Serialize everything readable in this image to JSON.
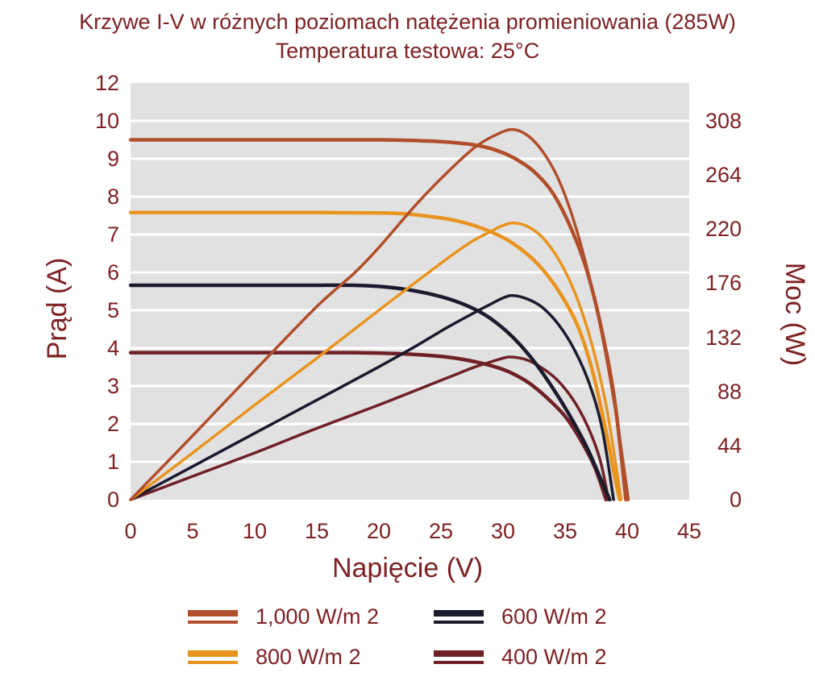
{
  "colors": {
    "text": "#7d2124",
    "plot_bg": "#e1e1e1",
    "grid": "#ffffff",
    "s1000": "#b14e2b",
    "s800": "#e8941f",
    "s600": "#1b1b2e",
    "s400": "#6f2127"
  },
  "chart_data": {
    "type": "line",
    "title": "Krzywe I-V w różnych poziomach natężenia promieniowania (285W)",
    "subtitle": "Temperatura testowa: 25°C",
    "grid": "horizontal-only",
    "legend_position": "bottom",
    "legend_columns": 2,
    "watts_per_unit": 30.8,
    "x_axis": {
      "label": "Napięcie (V)",
      "min": 0,
      "max": 45,
      "ticks": [
        0,
        5,
        10,
        15,
        20,
        25,
        30,
        35,
        40,
        45
      ]
    },
    "y_left": {
      "label": "Prąd (A)",
      "tick_labels": [
        "0",
        "1",
        "2",
        "3",
        "4",
        "5",
        "6",
        "7",
        "8",
        "9",
        "10",
        "12"
      ],
      "note": "labels evenly spaced as printed; top label reads 12"
    },
    "y_right": {
      "label": "Moc (W)",
      "ticks": [
        0,
        44,
        88,
        132,
        176,
        220,
        264,
        308
      ],
      "max": 308
    },
    "series": [
      {
        "name": "1,000 W/m 2",
        "irradiance_w_m2": 1000,
        "color_key": "s1000",
        "isc_a": 9.5,
        "voc_v": 39.9,
        "pmax_w": 300,
        "vmp_v": 30.8,
        "iv_points": [
          [
            0,
            9.5
          ],
          [
            5,
            9.5
          ],
          [
            10,
            9.5
          ],
          [
            15,
            9.5
          ],
          [
            20,
            9.5
          ],
          [
            23,
            9.48
          ],
          [
            25.5,
            9.44
          ],
          [
            27.8,
            9.36
          ],
          [
            29.5,
            9.22
          ],
          [
            31,
            9.0
          ],
          [
            32.5,
            8.66
          ],
          [
            34,
            8.1
          ],
          [
            35.5,
            7.15
          ],
          [
            36.8,
            6.0
          ],
          [
            38,
            4.4
          ],
          [
            39,
            2.6
          ],
          [
            39.9,
            0
          ]
        ],
        "pv_points": [
          [
            0,
            0
          ],
          [
            5,
            52
          ],
          [
            10,
            105
          ],
          [
            15,
            157
          ],
          [
            18,
            184
          ],
          [
            20,
            205
          ],
          [
            23,
            240
          ],
          [
            25.5,
            266
          ],
          [
            27.8,
            287
          ],
          [
            29.5,
            297
          ],
          [
            30.8,
            301
          ],
          [
            32,
            296
          ],
          [
            33.2,
            283
          ],
          [
            34.4,
            262
          ],
          [
            35.6,
            230
          ],
          [
            36.8,
            187
          ],
          [
            38,
            133
          ],
          [
            39.1,
            70
          ],
          [
            40.1,
            0
          ]
        ]
      },
      {
        "name": "800 W/m 2",
        "irradiance_w_m2": 800,
        "color_key": "s800",
        "isc_a": 7.58,
        "voc_v": 39.4,
        "pmax_w": 225,
        "vmp_v": 30.9,
        "iv_points": [
          [
            0,
            7.58
          ],
          [
            5,
            7.58
          ],
          [
            10,
            7.58
          ],
          [
            15,
            7.58
          ],
          [
            20,
            7.57
          ],
          [
            22,
            7.55
          ],
          [
            24,
            7.48
          ],
          [
            26,
            7.38
          ],
          [
            28,
            7.2
          ],
          [
            30,
            6.92
          ],
          [
            31.5,
            6.6
          ],
          [
            33,
            6.15
          ],
          [
            34.5,
            5.5
          ],
          [
            36,
            4.6
          ],
          [
            37.2,
            3.4
          ],
          [
            38.3,
            1.8
          ],
          [
            39,
            0.6
          ],
          [
            39.4,
            0
          ]
        ],
        "pv_points": [
          [
            0,
            0
          ],
          [
            5,
            38
          ],
          [
            10,
            77
          ],
          [
            15,
            115
          ],
          [
            20,
            154
          ],
          [
            23,
            177
          ],
          [
            25.5,
            196
          ],
          [
            27.5,
            210
          ],
          [
            29,
            218
          ],
          [
            30,
            223
          ],
          [
            30.9,
            225
          ],
          [
            32,
            222
          ],
          [
            33.2,
            213
          ],
          [
            34.5,
            195
          ],
          [
            35.8,
            168
          ],
          [
            37,
            132
          ],
          [
            38.2,
            82
          ],
          [
            39,
            34
          ],
          [
            39.5,
            0
          ]
        ]
      },
      {
        "name": "600 W/m 2",
        "irradiance_w_m2": 600,
        "color_key": "s600",
        "isc_a": 5.66,
        "voc_v": 38.6,
        "pmax_w": 166,
        "vmp_v": 30.8,
        "iv_points": [
          [
            0,
            5.66
          ],
          [
            5,
            5.66
          ],
          [
            10,
            5.66
          ],
          [
            15,
            5.66
          ],
          [
            18,
            5.66
          ],
          [
            20,
            5.63
          ],
          [
            22,
            5.56
          ],
          [
            24,
            5.44
          ],
          [
            26,
            5.26
          ],
          [
            28,
            4.98
          ],
          [
            29.5,
            4.66
          ],
          [
            31,
            4.22
          ],
          [
            32.5,
            3.65
          ],
          [
            34,
            2.95
          ],
          [
            35.5,
            2.15
          ],
          [
            36.8,
            1.35
          ],
          [
            37.8,
            0.6
          ],
          [
            38.6,
            0
          ]
        ],
        "pv_points": [
          [
            0,
            0
          ],
          [
            5,
            27
          ],
          [
            10,
            54
          ],
          [
            15,
            81
          ],
          [
            20,
            108
          ],
          [
            23,
            125
          ],
          [
            25.5,
            140
          ],
          [
            27.5,
            151
          ],
          [
            29,
            159
          ],
          [
            30,
            164
          ],
          [
            30.8,
            166
          ],
          [
            32,
            163
          ],
          [
            33.2,
            156
          ],
          [
            34.5,
            142
          ],
          [
            35.8,
            121
          ],
          [
            37,
            93
          ],
          [
            38,
            57
          ],
          [
            38.9,
            0
          ]
        ]
      },
      {
        "name": "400 W/m 2",
        "irradiance_w_m2": 400,
        "color_key": "s400",
        "isc_a": 3.88,
        "voc_v": 38.3,
        "pmax_w": 116,
        "vmp_v": 30.6,
        "iv_points": [
          [
            0,
            3.88
          ],
          [
            5,
            3.88
          ],
          [
            10,
            3.88
          ],
          [
            15,
            3.88
          ],
          [
            18,
            3.88
          ],
          [
            20,
            3.87
          ],
          [
            22.5,
            3.84
          ],
          [
            25,
            3.78
          ],
          [
            27,
            3.69
          ],
          [
            29,
            3.54
          ],
          [
            30.5,
            3.37
          ],
          [
            32,
            3.1
          ],
          [
            33.5,
            2.7
          ],
          [
            35,
            2.2
          ],
          [
            36.3,
            1.55
          ],
          [
            37.4,
            0.85
          ],
          [
            38.3,
            0
          ]
        ],
        "pv_points": [
          [
            0,
            0
          ],
          [
            5,
            19
          ],
          [
            10,
            38
          ],
          [
            15,
            58
          ],
          [
            20,
            77
          ],
          [
            23,
            89
          ],
          [
            25.5,
            99
          ],
          [
            27.5,
            107
          ],
          [
            29,
            112
          ],
          [
            30,
            115
          ],
          [
            30.6,
            116
          ],
          [
            31.8,
            114
          ],
          [
            33,
            108
          ],
          [
            34.3,
            98
          ],
          [
            35.6,
            82
          ],
          [
            36.8,
            60
          ],
          [
            37.8,
            33
          ],
          [
            38.5,
            0
          ]
        ]
      }
    ]
  }
}
